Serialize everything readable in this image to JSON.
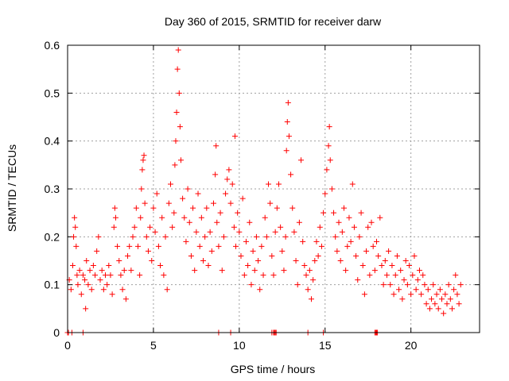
{
  "chart_data": {
    "type": "scatter",
    "title": "Day 360 of 2015, SRMTID for receiver darw",
    "xlabel": "GPS time / hours",
    "ylabel": "SRMTID / TECUs",
    "xlim": [
      0,
      24
    ],
    "ylim": [
      0,
      0.6
    ],
    "x_ticks": [
      0,
      5,
      10,
      15,
      20
    ],
    "x_tick_labels": [
      "0",
      "5",
      "10",
      "15",
      "20"
    ],
    "y_ticks": [
      0,
      0.1,
      0.2,
      0.3,
      0.4,
      0.5,
      0.6
    ],
    "y_tick_labels": [
      "0",
      "0.1",
      "0.2",
      "0.3",
      "0.4",
      "0.5",
      "0.6"
    ],
    "grid": true,
    "marker": "+",
    "marker_color": "#ff0000",
    "grid_color": "#a0a0a0",
    "series": [
      {
        "name": "SRMTID",
        "points": [
          [
            0.1,
            0.11
          ],
          [
            0.2,
            0.09
          ],
          [
            0.3,
            0.14
          ],
          [
            0.35,
            0.2
          ],
          [
            0.4,
            0.24
          ],
          [
            0.45,
            0.22
          ],
          [
            0.5,
            0.18
          ],
          [
            0.55,
            0.12
          ],
          [
            0.6,
            0.1
          ],
          [
            0.7,
            0.13
          ],
          [
            0.8,
            0.08
          ],
          [
            0.9,
            0.12
          ],
          [
            1.0,
            0.11
          ],
          [
            1.05,
            0.05
          ],
          [
            1.1,
            0.15
          ],
          [
            1.2,
            0.1
          ],
          [
            1.3,
            0.13
          ],
          [
            1.4,
            0.09
          ],
          [
            1.5,
            0.14
          ],
          [
            1.6,
            0.12
          ],
          [
            1.7,
            0.17
          ],
          [
            1.8,
            0.2
          ],
          [
            1.9,
            0.11
          ],
          [
            2.0,
            0.13
          ],
          [
            2.1,
            0.09
          ],
          [
            2.2,
            0.12
          ],
          [
            2.3,
            0.1
          ],
          [
            2.4,
            0.14
          ],
          [
            2.5,
            0.12
          ],
          [
            2.6,
            0.08
          ],
          [
            2.7,
            0.22
          ],
          [
            2.75,
            0.26
          ],
          [
            2.8,
            0.24
          ],
          [
            2.9,
            0.18
          ],
          [
            3.0,
            0.15
          ],
          [
            3.1,
            0.12
          ],
          [
            3.2,
            0.09
          ],
          [
            3.3,
            0.13
          ],
          [
            3.4,
            0.07
          ],
          [
            3.5,
            0.16
          ],
          [
            3.6,
            0.18
          ],
          [
            3.7,
            0.13
          ],
          [
            3.8,
            0.2
          ],
          [
            3.9,
            0.22
          ],
          [
            4.0,
            0.26
          ],
          [
            4.1,
            0.18
          ],
          [
            4.2,
            0.12
          ],
          [
            4.25,
            0.24
          ],
          [
            4.3,
            0.3
          ],
          [
            4.35,
            0.34
          ],
          [
            4.4,
            0.36
          ],
          [
            4.45,
            0.37
          ],
          [
            4.5,
            0.27
          ],
          [
            4.6,
            0.2
          ],
          [
            4.7,
            0.17
          ],
          [
            4.8,
            0.22
          ],
          [
            4.9,
            0.15
          ],
          [
            5.0,
            0.26
          ],
          [
            5.1,
            0.21
          ],
          [
            5.2,
            0.29
          ],
          [
            5.3,
            0.18
          ],
          [
            5.4,
            0.14
          ],
          [
            5.5,
            0.24
          ],
          [
            5.6,
            0.12
          ],
          [
            5.7,
            0.2
          ],
          [
            5.8,
            0.09
          ],
          [
            5.9,
            0.27
          ],
          [
            6.0,
            0.31
          ],
          [
            6.1,
            0.22
          ],
          [
            6.2,
            0.25
          ],
          [
            6.25,
            0.35
          ],
          [
            6.3,
            0.4
          ],
          [
            6.35,
            0.46
          ],
          [
            6.4,
            0.55
          ],
          [
            6.45,
            0.59
          ],
          [
            6.5,
            0.5
          ],
          [
            6.55,
            0.43
          ],
          [
            6.6,
            0.36
          ],
          [
            6.7,
            0.28
          ],
          [
            6.8,
            0.24
          ],
          [
            6.9,
            0.19
          ],
          [
            7.0,
            0.3
          ],
          [
            7.1,
            0.23
          ],
          [
            7.2,
            0.16
          ],
          [
            7.3,
            0.26
          ],
          [
            7.4,
            0.13
          ],
          [
            7.5,
            0.21
          ],
          [
            7.6,
            0.29
          ],
          [
            7.7,
            0.18
          ],
          [
            7.8,
            0.24
          ],
          [
            7.9,
            0.15
          ],
          [
            8.0,
            0.2
          ],
          [
            8.1,
            0.26
          ],
          [
            8.2,
            0.14
          ],
          [
            8.3,
            0.21
          ],
          [
            8.4,
            0.17
          ],
          [
            8.5,
            0.27
          ],
          [
            8.6,
            0.33
          ],
          [
            8.65,
            0.39
          ],
          [
            8.7,
            0.23
          ],
          [
            8.8,
            0.18
          ],
          [
            8.9,
            0.25
          ],
          [
            9.0,
            0.13
          ],
          [
            9.1,
            0.2
          ],
          [
            9.2,
            0.29
          ],
          [
            9.3,
            0.32
          ],
          [
            9.4,
            0.34
          ],
          [
            9.5,
            0.27
          ],
          [
            9.6,
            0.31
          ],
          [
            9.7,
            0.22
          ],
          [
            9.75,
            0.41
          ],
          [
            9.8,
            0.18
          ],
          [
            9.9,
            0.25
          ],
          [
            10.0,
            0.21
          ],
          [
            10.1,
            0.16
          ],
          [
            10.2,
            0.28
          ],
          [
            10.3,
            0.12
          ],
          [
            10.4,
            0.19
          ],
          [
            10.5,
            0.14
          ],
          [
            10.6,
            0.23
          ],
          [
            10.7,
            0.1
          ],
          [
            10.8,
            0.17
          ],
          [
            10.9,
            0.13
          ],
          [
            11.0,
            0.2
          ],
          [
            11.1,
            0.15
          ],
          [
            11.2,
            0.09
          ],
          [
            11.3,
            0.18
          ],
          [
            11.4,
            0.12
          ],
          [
            11.5,
            0.24
          ],
          [
            11.6,
            0.2
          ],
          [
            11.7,
            0.31
          ],
          [
            11.8,
            0.27
          ],
          [
            11.9,
            0.16
          ],
          [
            12.0,
            0.12
          ],
          [
            12.1,
            0.21
          ],
          [
            12.2,
            0.26
          ],
          [
            12.3,
            0.31
          ],
          [
            12.4,
            0.22
          ],
          [
            12.5,
            0.17
          ],
          [
            12.6,
            0.13
          ],
          [
            12.7,
            0.2
          ],
          [
            12.75,
            0.38
          ],
          [
            12.8,
            0.44
          ],
          [
            12.85,
            0.48
          ],
          [
            12.9,
            0.41
          ],
          [
            13.0,
            0.33
          ],
          [
            13.1,
            0.26
          ],
          [
            13.2,
            0.21
          ],
          [
            13.3,
            0.15
          ],
          [
            13.4,
            0.1
          ],
          [
            13.5,
            0.23
          ],
          [
            13.6,
            0.36
          ],
          [
            13.7,
            0.19
          ],
          [
            13.8,
            0.14
          ],
          [
            13.9,
            0.12
          ],
          [
            14.0,
            0.09
          ],
          [
            14.1,
            0.13
          ],
          [
            14.2,
            0.07
          ],
          [
            14.3,
            0.11
          ],
          [
            14.4,
            0.15
          ],
          [
            14.5,
            0.19
          ],
          [
            14.6,
            0.16
          ],
          [
            14.7,
            0.22
          ],
          [
            14.8,
            0.18
          ],
          [
            14.9,
            0.25
          ],
          [
            15.0,
            0.29
          ],
          [
            15.1,
            0.34
          ],
          [
            15.2,
            0.39
          ],
          [
            15.25,
            0.43
          ],
          [
            15.3,
            0.36
          ],
          [
            15.4,
            0.3
          ],
          [
            15.5,
            0.25
          ],
          [
            15.6,
            0.2
          ],
          [
            15.7,
            0.17
          ],
          [
            15.8,
            0.23
          ],
          [
            15.9,
            0.15
          ],
          [
            16.0,
            0.21
          ],
          [
            16.1,
            0.26
          ],
          [
            16.2,
            0.13
          ],
          [
            16.3,
            0.18
          ],
          [
            16.4,
            0.24
          ],
          [
            16.5,
            0.19
          ],
          [
            16.6,
            0.31
          ],
          [
            16.7,
            0.22
          ],
          [
            16.8,
            0.16
          ],
          [
            16.9,
            0.11
          ],
          [
            17.0,
            0.2
          ],
          [
            17.1,
            0.25
          ],
          [
            17.2,
            0.14
          ],
          [
            17.3,
            0.08
          ],
          [
            17.4,
            0.17
          ],
          [
            17.5,
            0.22
          ],
          [
            17.6,
            0.12
          ],
          [
            17.7,
            0.23
          ],
          [
            17.8,
            0.18
          ],
          [
            17.9,
            0.13
          ],
          [
            18.0,
            0.19
          ],
          [
            18.1,
            0.16
          ],
          [
            18.2,
            0.24
          ],
          [
            18.3,
            0.14
          ],
          [
            18.4,
            0.1
          ],
          [
            18.5,
            0.15
          ],
          [
            18.6,
            0.12
          ],
          [
            18.7,
            0.17
          ],
          [
            18.8,
            0.1
          ],
          [
            18.9,
            0.14
          ],
          [
            19.0,
            0.08
          ],
          [
            19.1,
            0.12
          ],
          [
            19.2,
            0.16
          ],
          [
            19.3,
            0.09
          ],
          [
            19.4,
            0.13
          ],
          [
            19.5,
            0.07
          ],
          [
            19.6,
            0.11
          ],
          [
            19.7,
            0.15
          ],
          [
            19.8,
            0.1
          ],
          [
            19.9,
            0.14
          ],
          [
            20.0,
            0.08
          ],
          [
            20.1,
            0.12
          ],
          [
            20.2,
            0.16
          ],
          [
            20.3,
            0.09
          ],
          [
            20.4,
            0.11
          ],
          [
            20.5,
            0.13
          ],
          [
            20.6,
            0.08
          ],
          [
            20.7,
            0.12
          ],
          [
            20.8,
            0.1
          ],
          [
            20.9,
            0.06
          ],
          [
            21.0,
            0.09
          ],
          [
            21.1,
            0.05
          ],
          [
            21.2,
            0.07
          ],
          [
            21.3,
            0.1
          ],
          [
            21.4,
            0.06
          ],
          [
            21.5,
            0.08
          ],
          [
            21.6,
            0.05
          ],
          [
            21.7,
            0.09
          ],
          [
            21.8,
            0.07
          ],
          [
            21.9,
            0.04
          ],
          [
            22.0,
            0.08
          ],
          [
            22.1,
            0.06
          ],
          [
            22.2,
            0.1
          ],
          [
            22.3,
            0.07
          ],
          [
            22.4,
            0.05
          ],
          [
            22.5,
            0.09
          ],
          [
            22.6,
            0.12
          ],
          [
            22.7,
            0.08
          ],
          [
            22.8,
            0.06
          ],
          [
            22.9,
            0.1
          ]
        ],
        "zero_points": [
          0.0,
          0.05,
          0.25,
          0.9,
          8.8,
          9.5,
          11.9,
          12.0,
          12.05,
          12.1,
          12.15,
          14.0,
          14.9,
          17.9,
          17.95,
          18.0,
          18.05
        ]
      }
    ]
  }
}
